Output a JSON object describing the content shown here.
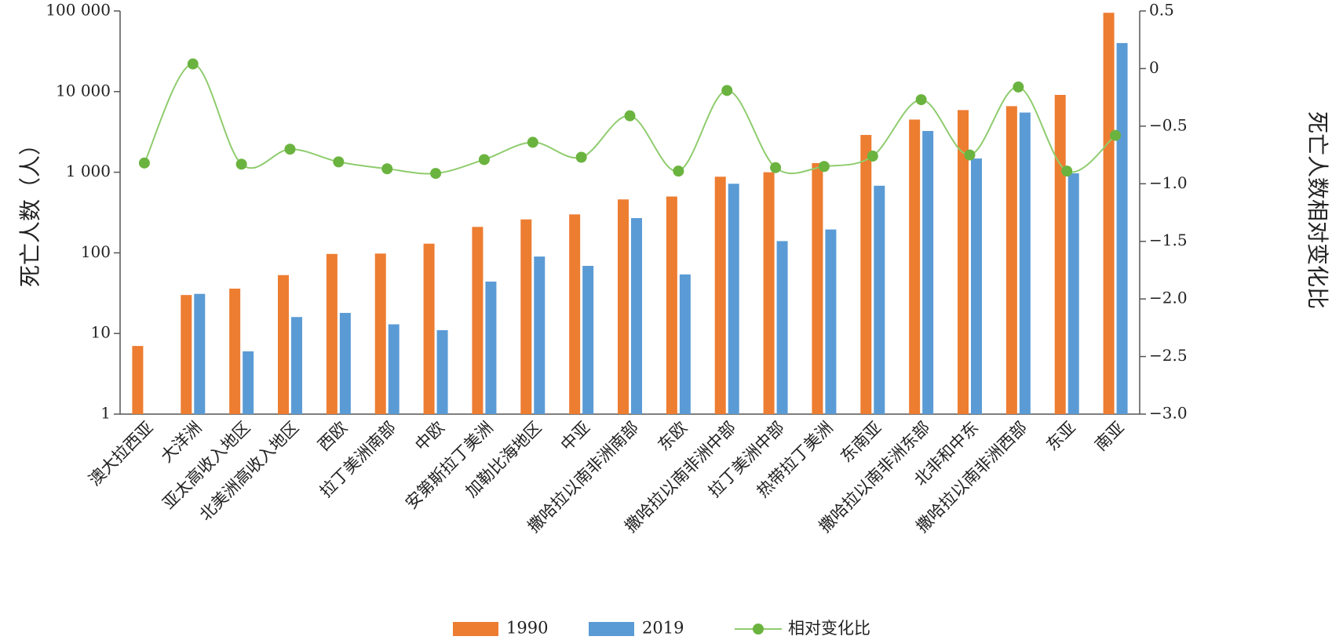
{
  "chart_data": {
    "type": "bar",
    "categories": [
      "澳大拉西亚",
      "大洋洲",
      "亚太高收入地区",
      "北美洲高收入地区",
      "西欧",
      "拉丁美洲南部",
      "中欧",
      "安第斯拉丁美洲",
      "加勒比海地区",
      "中亚",
      "撒哈拉以南非洲南部",
      "东欧",
      "撒哈拉以南非洲中部",
      "拉丁美洲中部",
      "热带拉丁美洲",
      "东南亚",
      "撒哈拉以南非洲东部",
      "北非和中东",
      "撒哈拉以南非洲西部",
      "东亚",
      "南亚"
    ],
    "series": [
      {
        "name": "1990",
        "type": "bar",
        "axis": "left",
        "color": "#ED7D31",
        "values": [
          7,
          30,
          36,
          53,
          97,
          98,
          130,
          210,
          260,
          300,
          460,
          500,
          880,
          1000,
          1300,
          2900,
          4500,
          5900,
          6600,
          9100,
          95000
        ]
      },
      {
        "name": "2019",
        "type": "bar",
        "axis": "left",
        "color": "#5B9BD5",
        "values": [
          null,
          31,
          6,
          16,
          18,
          13,
          11,
          44,
          90,
          69,
          270,
          54,
          720,
          140,
          195,
          680,
          3250,
          1480,
          5500,
          970,
          40000
        ]
      },
      {
        "name": "相对变化比",
        "type": "line",
        "axis": "right",
        "color": "#8FCC6E",
        "marker_color": "#6BB33F",
        "values": [
          -0.82,
          0.04,
          -0.83,
          -0.7,
          -0.81,
          -0.87,
          -0.91,
          -0.79,
          -0.64,
          -0.77,
          -0.41,
          -0.89,
          -0.19,
          -0.86,
          -0.85,
          -0.76,
          -0.27,
          -0.75,
          -0.16,
          -0.89,
          -0.58
        ]
      }
    ],
    "ylabel": "死亡人数（人）",
    "y2label": "死亡人数相对变化比",
    "y_scale": "log",
    "ylim": [
      1,
      100000
    ],
    "y_ticks": [
      1,
      10,
      100,
      1000,
      10000,
      100000
    ],
    "y_tick_labels": [
      "1",
      "10",
      "100",
      "1 000",
      "10 000",
      "100 000"
    ],
    "y2lim": [
      -3.0,
      0.5
    ],
    "y2_ticks": [
      0.5,
      0,
      -0.5,
      -1.0,
      -1.5,
      -2.0,
      -2.5,
      -3.0
    ],
    "y2_tick_labels": [
      "0.5",
      "0",
      "−0.5",
      "−1.0",
      "−1.5",
      "−2.0",
      "−2.5",
      "−3.0"
    ],
    "legend": {
      "placement": "bottom-center",
      "items": [
        {
          "label": "1990",
          "kind": "bar",
          "color": "#ED7D31"
        },
        {
          "label": "2019",
          "kind": "bar",
          "color": "#5B9BD5"
        },
        {
          "label": "相对变化比",
          "kind": "line",
          "color": "#8FCC6E"
        }
      ]
    },
    "grid": false
  }
}
